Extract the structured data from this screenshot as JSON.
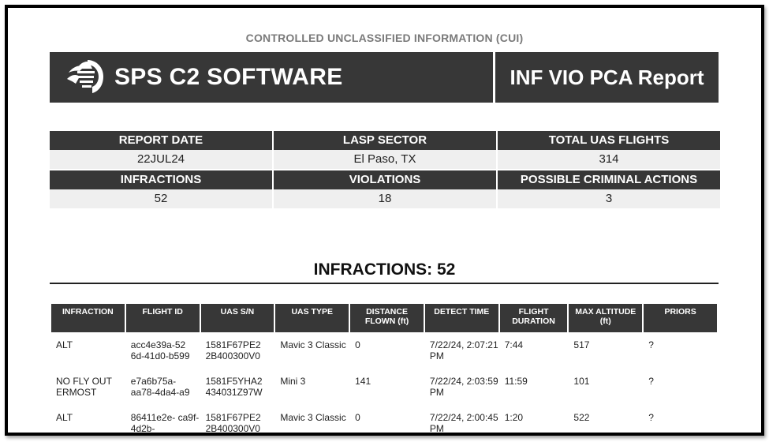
{
  "cui_banner": "CONTROLLED UNCLASSIFIED INFORMATION (CUI)",
  "header": {
    "brand": "SPS C2 SOFTWARE",
    "report_title": "INF VIO PCA Report"
  },
  "summary": {
    "report_date_label": "REPORT DATE",
    "report_date": "22JUL24",
    "lasp_sector_label": "LASP SECTOR",
    "lasp_sector": "El Paso, TX",
    "total_flights_label": "TOTAL UAS FLIGHTS",
    "total_flights": "314",
    "infractions_label": "INFRACTIONS",
    "infractions": "52",
    "violations_label": "VIOLATIONS",
    "violations": "18",
    "pca_label": "POSSIBLE CRIMINAL ACTIONS",
    "pca": "3"
  },
  "section": {
    "title": "INFRACTIONS: 52"
  },
  "table": {
    "headers": [
      "INFRACTION",
      "FLIGHT ID",
      "UAS S/N",
      "UAS TYPE",
      "DISTANCE FLOWN (ft)",
      "DETECT TIME",
      "FLIGHT DURATION",
      "MAX ALTITUDE (ft)",
      "PRIORS"
    ],
    "rows": [
      {
        "infraction": "ALT",
        "flight_id": "acc4e39a-52 6d-41d0-b599",
        "uas_sn": "1581F67PE2 2B400300V0",
        "uas_type": "Mavic 3 Classic",
        "distance": "0",
        "detect_time": "7/22/24, 2:07:21 PM",
        "duration": "7:44",
        "max_alt": "517",
        "priors": "?"
      },
      {
        "infraction": "NO FLY OUT ERMOST",
        "flight_id": "e7a6b75a- aa78-4da4-a9",
        "uas_sn": "1581F5YHA2 434031Z97W",
        "uas_type": "Mini 3",
        "distance": "141",
        "detect_time": "7/22/24, 2:03:59 PM",
        "duration": "11:59",
        "max_alt": "101",
        "priors": "?"
      },
      {
        "infraction": "ALT",
        "flight_id": "86411e2e- ca9f-4d2b-",
        "uas_sn": "1581F67PE2 2B400300V0",
        "uas_type": "Mavic 3 Classic",
        "distance": "0",
        "detect_time": "7/22/24, 2:00:45 PM",
        "duration": "1:20",
        "max_alt": "522",
        "priors": "?"
      }
    ]
  }
}
